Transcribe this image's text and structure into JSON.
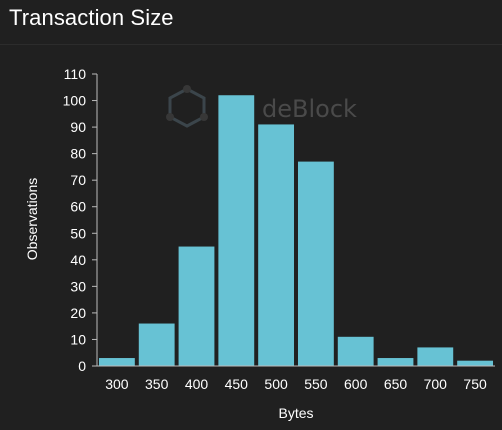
{
  "panel": {
    "title": "Transaction Size"
  },
  "watermark": {
    "text": "deBlock",
    "icon": "hexagon-node-logo-icon"
  },
  "colors": {
    "background": "#202020",
    "bar": "#67c2d4",
    "axis": "#bbbbbb",
    "text": "#ffffff",
    "watermark": "#4a4a4a"
  },
  "chart_data": {
    "type": "bar",
    "title": "Transaction Size",
    "xlabel": "Bytes",
    "ylabel": "Observations",
    "categories": [
      "300",
      "350",
      "400",
      "450",
      "500",
      "550",
      "600",
      "650",
      "700",
      "750"
    ],
    "values": [
      3,
      16,
      45,
      102,
      91,
      77,
      11,
      3,
      7,
      2
    ],
    "ylim": [
      0,
      110
    ],
    "yticks": [
      0,
      10,
      20,
      30,
      40,
      50,
      60,
      70,
      80,
      90,
      100,
      110
    ],
    "grid": false,
    "legend": "none"
  }
}
